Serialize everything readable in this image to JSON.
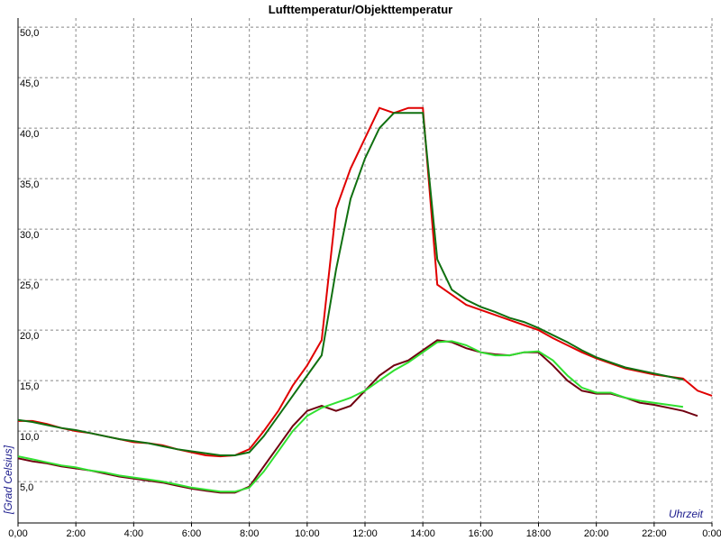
{
  "chart_data": {
    "type": "line",
    "title": "Lufttemperatur/Objekttemperatur",
    "y_label": "[Grad Celsius]",
    "x_label": "Uhrzeit",
    "x": [
      0,
      0.5,
      1,
      1.5,
      2,
      2.5,
      3,
      3.5,
      4,
      4.5,
      5,
      5.5,
      6,
      6.5,
      7,
      7.5,
      8,
      8.5,
      9,
      9.5,
      10,
      10.5,
      11,
      11.5,
      12,
      12.5,
      13,
      13.5,
      14,
      14.5,
      15,
      15.5,
      16,
      16.5,
      17,
      17.5,
      18,
      18.5,
      19,
      19.5,
      20,
      20.5,
      21,
      21.5,
      22,
      22.5,
      23,
      23.5,
      24
    ],
    "series": [
      {
        "color": "#e00000",
        "values": [
          11.0,
          11.0,
          10.7,
          10.3,
          10.0,
          9.8,
          9.5,
          9.2,
          8.9,
          8.8,
          8.6,
          8.2,
          7.9,
          7.6,
          7.5,
          7.6,
          8.2,
          10,
          12,
          14.5,
          16.5,
          19,
          32,
          36,
          39,
          42,
          41.5,
          42,
          42,
          24.5,
          23.5,
          22.5,
          22,
          21.5,
          21,
          20.5,
          20,
          19.2,
          18.5,
          17.8,
          17.2,
          16.7,
          16.2,
          15.9,
          15.6,
          15.4,
          15.2,
          14,
          13.5
        ]
      },
      {
        "color": "#107010",
        "values": [
          11.1,
          10.9,
          10.6,
          10.3,
          10.1,
          9.8,
          9.5,
          9.2,
          9,
          8.8,
          8.5,
          8.2,
          8,
          7.8,
          7.6,
          7.6,
          7.9,
          9.5,
          11.5,
          13.5,
          15.5,
          17.5,
          26,
          33,
          37,
          40,
          41.5,
          41.5,
          41.5,
          27,
          24,
          23,
          22.3,
          21.8,
          21.2,
          20.8,
          20.2,
          19.5,
          18.8,
          18,
          17.3,
          16.8,
          16.3,
          16,
          15.7,
          15.4,
          15.1,
          null,
          null
        ]
      },
      {
        "color": "#700010",
        "values": [
          7.3,
          7,
          6.8,
          6.5,
          6.3,
          6.1,
          5.8,
          5.5,
          5.3,
          5.1,
          4.9,
          4.6,
          4.3,
          4.1,
          3.9,
          3.9,
          4.5,
          6.5,
          8.5,
          10.5,
          12,
          12.5,
          12,
          12.5,
          14,
          15.5,
          16.5,
          17,
          18,
          19,
          18.8,
          18.2,
          17.8,
          17.6,
          17.5,
          17.8,
          17.8,
          16.5,
          15,
          14,
          13.7,
          13.7,
          13.3,
          12.8,
          12.6,
          12.3,
          12,
          11.5,
          null
        ]
      },
      {
        "color": "#30e030",
        "values": [
          7.5,
          7.2,
          6.9,
          6.6,
          6.4,
          6.1,
          5.9,
          5.6,
          5.4,
          5.2,
          5,
          4.7,
          4.4,
          4.2,
          4,
          4,
          4.4,
          6,
          8,
          10,
          11.5,
          12.3,
          12.8,
          13.3,
          14,
          15,
          16,
          16.8,
          17.8,
          18.8,
          18.9,
          18.5,
          17.8,
          17.5,
          17.5,
          17.8,
          17.9,
          17,
          15.5,
          14.3,
          13.8,
          13.8,
          13.3,
          13,
          12.8,
          12.6,
          12.4,
          null,
          null
        ]
      }
    ],
    "xlim": [
      0,
      24
    ],
    "ylim": [
      0.9,
      50.9
    ],
    "xticks": [
      {
        "value": 0,
        "label": "0,00"
      },
      {
        "value": 2,
        "label": "2:00"
      },
      {
        "value": 4,
        "label": "4:00"
      },
      {
        "value": 6,
        "label": "6:00"
      },
      {
        "value": 8,
        "label": "8:00"
      },
      {
        "value": 10,
        "label": "10:00"
      },
      {
        "value": 12,
        "label": "12:00"
      },
      {
        "value": 14,
        "label": "14:00"
      },
      {
        "value": 16,
        "label": "16:00"
      },
      {
        "value": 18,
        "label": "18:00"
      },
      {
        "value": 20,
        "label": "20:00"
      },
      {
        "value": 22,
        "label": "22:00"
      },
      {
        "value": 24,
        "label": "0:00"
      }
    ],
    "yticks": [
      {
        "value": 5,
        "label": "5,0"
      },
      {
        "value": 10,
        "label": "10,0"
      },
      {
        "value": 15,
        "label": "15,0"
      },
      {
        "value": 20,
        "label": "20,0"
      },
      {
        "value": 25,
        "label": "25,0"
      },
      {
        "value": 30,
        "label": "30,0"
      },
      {
        "value": 35,
        "label": "35,0"
      },
      {
        "value": 40,
        "label": "40,0"
      },
      {
        "value": 45,
        "label": "45,0"
      },
      {
        "value": 50,
        "label": "50,0"
      }
    ],
    "grid": true
  }
}
